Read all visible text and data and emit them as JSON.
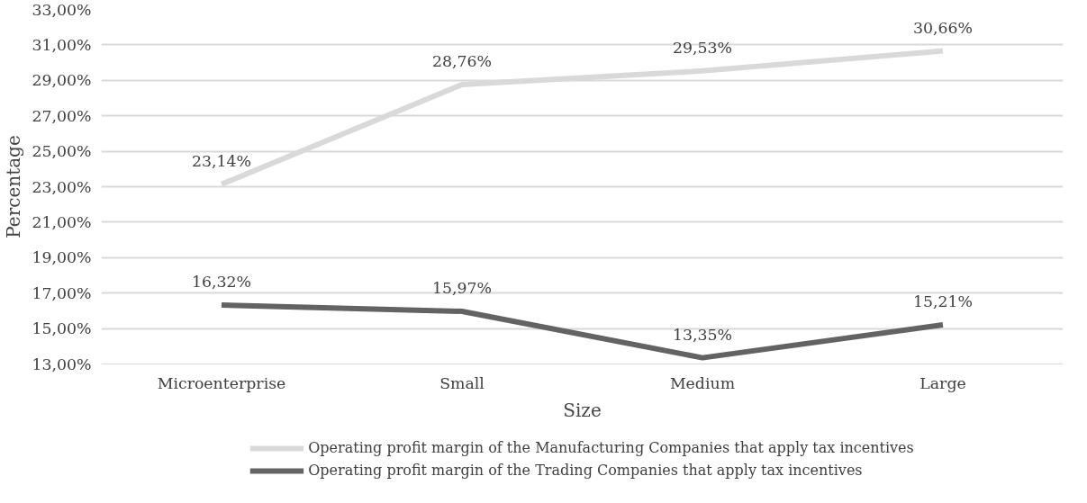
{
  "chart_data": {
    "type": "line",
    "xlabel": "Size",
    "ylabel": "Percentage",
    "categories": [
      "Microenterprise",
      "Small",
      "Medium",
      "Large"
    ],
    "series": [
      {
        "name": "Operating profit margin of the Manufacturing Companies that apply tax incentives",
        "color": "#d9d9d9",
        "values": [
          23.14,
          28.76,
          29.53,
          30.66
        ],
        "value_labels": [
          "23,14%",
          "28,76%",
          "29,53%",
          "30,66%"
        ]
      },
      {
        "name": "Operating profit margin of the Trading Companies that apply tax incentives",
        "color": "#636363",
        "values": [
          16.32,
          15.97,
          13.35,
          15.21
        ],
        "value_labels": [
          "16,32%",
          "15,97%",
          "13,35%",
          "15,21%"
        ]
      }
    ],
    "ylim": [
      13,
      33
    ],
    "yticks": [
      {
        "value": 13,
        "label": "13,00%"
      },
      {
        "value": 15,
        "label": "15,00%"
      },
      {
        "value": 17,
        "label": "17,00%"
      },
      {
        "value": 19,
        "label": "19,00%"
      },
      {
        "value": 21,
        "label": "21,00%"
      },
      {
        "value": 23,
        "label": "23,00%"
      },
      {
        "value": 25,
        "label": "25,00%"
      },
      {
        "value": 27,
        "label": "27,00%"
      },
      {
        "value": 29,
        "label": "29,00%"
      },
      {
        "value": 31,
        "label": "31,00%"
      },
      {
        "value": 33,
        "label": "33,00%"
      }
    ],
    "grid": "y",
    "legend": "bottom",
    "marker": "none",
    "line_style": "solid"
  }
}
